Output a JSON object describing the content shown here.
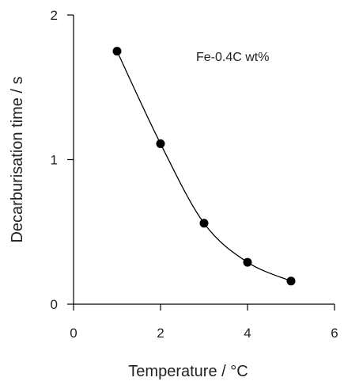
{
  "chart_data": {
    "type": "line",
    "title": "",
    "annotation": "Fe-0.4C wt%",
    "xlabel": "Temperature / °C",
    "ylabel": "Decarburisation time / s",
    "xlim": [
      0,
      6
    ],
    "ylim": [
      0,
      2
    ],
    "xticks": [
      0,
      2,
      4,
      6
    ],
    "yticks": [
      0,
      1,
      2
    ],
    "grid": false,
    "smooth": true,
    "series": [
      {
        "x": [
          1,
          2,
          3,
          4,
          5
        ],
        "y": [
          1.75,
          1.11,
          0.56,
          0.29,
          0.16
        ]
      }
    ],
    "colors": {
      "line": "#000000",
      "marker": "#000000",
      "axis": "#000000"
    }
  }
}
